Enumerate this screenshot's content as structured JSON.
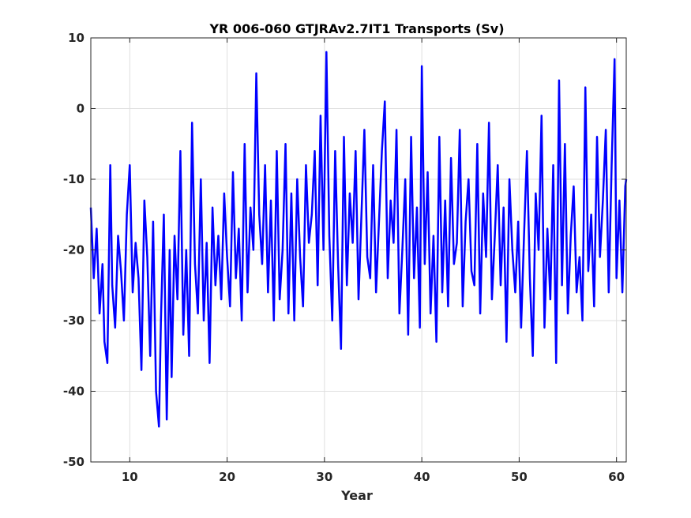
{
  "chart_data": {
    "type": "line",
    "title": "YR 006-060 GTJRAv2.7IT1 Transports (Sv)",
    "xlabel": "Year",
    "ylabel": "",
    "xlim": [
      6,
      61
    ],
    "ylim": [
      -50,
      10
    ],
    "xticks": [
      10,
      20,
      30,
      40,
      50,
      60
    ],
    "yticks": [
      10,
      0,
      -10,
      -20,
      -30,
      -40,
      -50
    ],
    "grid": true,
    "legend": "none",
    "series": [
      {
        "color": "#0000ff",
        "x": [
          6.0,
          6.3,
          6.6,
          6.9,
          7.2,
          7.4,
          7.7,
          8.0,
          8.2,
          8.5,
          8.8,
          9.1,
          9.4,
          9.7,
          10.0,
          10.3,
          10.6,
          10.9,
          11.2,
          11.5,
          11.8,
          12.1,
          12.4,
          12.7,
          13.0,
          13.2,
          13.5,
          13.8,
          14.1,
          14.3,
          14.6,
          14.9,
          15.2,
          15.5,
          15.8,
          16.1,
          16.4,
          16.7,
          17.0,
          17.3,
          17.6,
          17.9,
          18.2,
          18.5,
          18.8,
          19.1,
          19.4,
          19.7,
          20.0,
          20.3,
          20.6,
          20.9,
          21.2,
          21.5,
          21.8,
          22.1,
          22.4,
          22.7,
          23.0,
          23.3,
          23.6,
          23.9,
          24.2,
          24.5,
          24.8,
          25.1,
          25.4,
          25.7,
          26.0,
          26.3,
          26.6,
          26.9,
          27.2,
          27.5,
          27.8,
          28.1,
          28.4,
          28.7,
          29.0,
          29.3,
          29.6,
          29.9,
          30.2,
          30.5,
          30.8,
          31.1,
          31.4,
          31.7,
          32.0,
          32.3,
          32.6,
          32.9,
          33.2,
          33.5,
          33.8,
          34.1,
          34.4,
          34.7,
          35.0,
          35.3,
          35.6,
          35.9,
          36.2,
          36.5,
          36.8,
          37.1,
          37.4,
          37.7,
          38.0,
          38.3,
          38.6,
          38.9,
          39.2,
          39.5,
          39.8,
          40.0,
          40.3,
          40.6,
          40.9,
          41.2,
          41.5,
          41.8,
          42.1,
          42.4,
          42.7,
          43.0,
          43.3,
          43.6,
          43.9,
          44.2,
          44.5,
          44.8,
          45.1,
          45.4,
          45.7,
          46.0,
          46.3,
          46.6,
          46.9,
          47.2,
          47.5,
          47.8,
          48.1,
          48.4,
          48.7,
          49.0,
          49.3,
          49.6,
          49.9,
          50.2,
          50.5,
          50.8,
          51.1,
          51.4,
          51.7,
          52.0,
          52.3,
          52.6,
          52.9,
          53.2,
          53.5,
          53.8,
          54.1,
          54.4,
          54.7,
          55.0,
          55.3,
          55.6,
          55.9,
          56.2,
          56.5,
          56.8,
          57.1,
          57.4,
          57.7,
          58.0,
          58.3,
          58.6,
          58.9,
          59.2,
          59.5,
          59.8,
          60.0,
          60.3,
          60.6,
          60.9,
          61.0
        ],
        "y": [
          -14,
          -24,
          -17,
          -29,
          -22,
          -33,
          -36,
          -8,
          -25,
          -31,
          -18,
          -23,
          -30,
          -15,
          -8,
          -26,
          -19,
          -24,
          -37,
          -13,
          -21,
          -35,
          -16,
          -40,
          -45,
          -30,
          -15,
          -44,
          -20,
          -38,
          -18,
          -27,
          -6,
          -32,
          -20,
          -35,
          -2,
          -22,
          -29,
          -10,
          -30,
          -19,
          -36,
          -14,
          -25,
          -18,
          -27,
          -12,
          -21,
          -28,
          -9,
          -24,
          -17,
          -30,
          -5,
          -26,
          -14,
          -20,
          5,
          -15,
          -22,
          -8,
          -26,
          -13,
          -30,
          -6,
          -27,
          -20,
          -5,
          -29,
          -12,
          -30,
          -10,
          -21,
          -28,
          -8,
          -19,
          -15,
          -6,
          -25,
          -1,
          -20,
          8,
          -18,
          -30,
          -6,
          -22,
          -34,
          -4,
          -25,
          -12,
          -19,
          -6,
          -27,
          -15,
          -3,
          -21,
          -24,
          -8,
          -26,
          -16,
          -6,
          1,
          -24,
          -13,
          -19,
          -3,
          -29,
          -20,
          -10,
          -32,
          -4,
          -24,
          -14,
          -31,
          6,
          -22,
          -9,
          -29,
          -18,
          -33,
          -4,
          -26,
          -13,
          -28,
          -7,
          -22,
          -19,
          -3,
          -28,
          -16,
          -10,
          -23,
          -25,
          -5,
          -29,
          -12,
          -21,
          -2,
          -27,
          -18,
          -8,
          -25,
          -14,
          -33,
          -10,
          -20,
          -26,
          -16,
          -31,
          -18,
          -6,
          -24,
          -35,
          -12,
          -20,
          -1,
          -31,
          -17,
          -27,
          -8,
          -36,
          4,
          -25,
          -5,
          -29,
          -18,
          -11,
          -26,
          -21,
          -30,
          3,
          -23,
          -15,
          -28,
          -4,
          -21,
          -13,
          -3,
          -26,
          -8,
          7,
          -24,
          -13,
          -26,
          -11,
          -10
        ]
      }
    ]
  }
}
